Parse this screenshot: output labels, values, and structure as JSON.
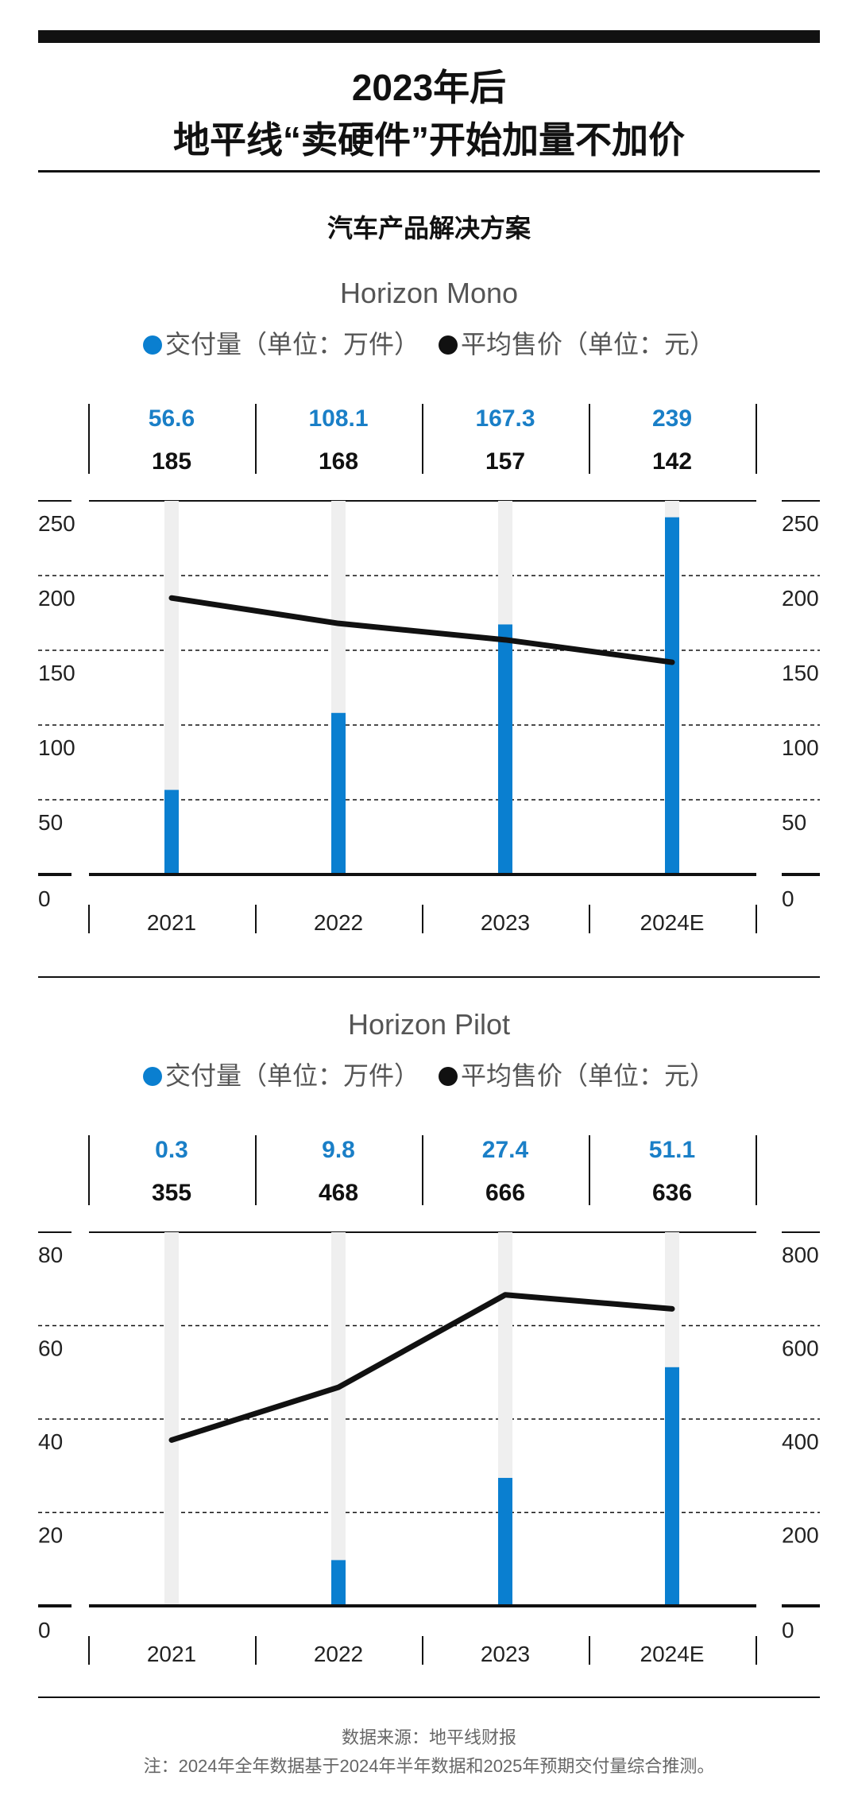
{
  "header": {
    "title_line1": "2023年后",
    "title_line2": "地平线“卖硬件”开始加量不加价",
    "subtitle": "汽车产品解决方案"
  },
  "legend": {
    "series1": "交付量（单位：万件）",
    "series2": "平均售价（单位：元）"
  },
  "colors": {
    "bar": "#0a7fd0",
    "bar_track": "#efefef",
    "line": "#111111",
    "series1_label": "#1a7fc7"
  },
  "chart_data": [
    {
      "type": "bar",
      "title": "Horizon Mono",
      "categories": [
        "2021",
        "2022",
        "2023",
        "2024E"
      ],
      "series": [
        {
          "name": "交付量（单位：万件）",
          "axis": "left",
          "values": [
            56.6,
            108.1,
            167.3,
            239
          ]
        },
        {
          "name": "平均售价（单位：元）",
          "type": "line",
          "axis": "right",
          "values": [
            185,
            168,
            157,
            142
          ]
        }
      ],
      "yleft": {
        "range": [
          0,
          250
        ],
        "ticks": [
          0,
          50,
          100,
          150,
          200,
          250
        ]
      },
      "yright": {
        "range": [
          0,
          250
        ],
        "ticks": [
          0,
          50,
          100,
          150,
          200,
          250
        ]
      },
      "grid": true
    },
    {
      "type": "bar",
      "title": "Horizon Pilot",
      "categories": [
        "2021",
        "2022",
        "2023",
        "2024E"
      ],
      "series": [
        {
          "name": "交付量（单位：万件）",
          "axis": "left",
          "values": [
            0.3,
            9.8,
            27.4,
            51.1
          ]
        },
        {
          "name": "平均售价（单位：元）",
          "type": "line",
          "axis": "right",
          "values": [
            355,
            468,
            666,
            636
          ]
        }
      ],
      "yleft": {
        "range": [
          0,
          80
        ],
        "ticks": [
          0,
          20,
          40,
          60,
          80
        ]
      },
      "yright": {
        "range": [
          0,
          800
        ],
        "ticks": [
          0,
          200,
          400,
          600,
          800
        ]
      },
      "grid": true
    }
  ],
  "footer": {
    "source": "数据来源：地平线财报",
    "note": "注：2024年全年数据基于2024年半年数据和2025年预期交付量综合推测。"
  }
}
